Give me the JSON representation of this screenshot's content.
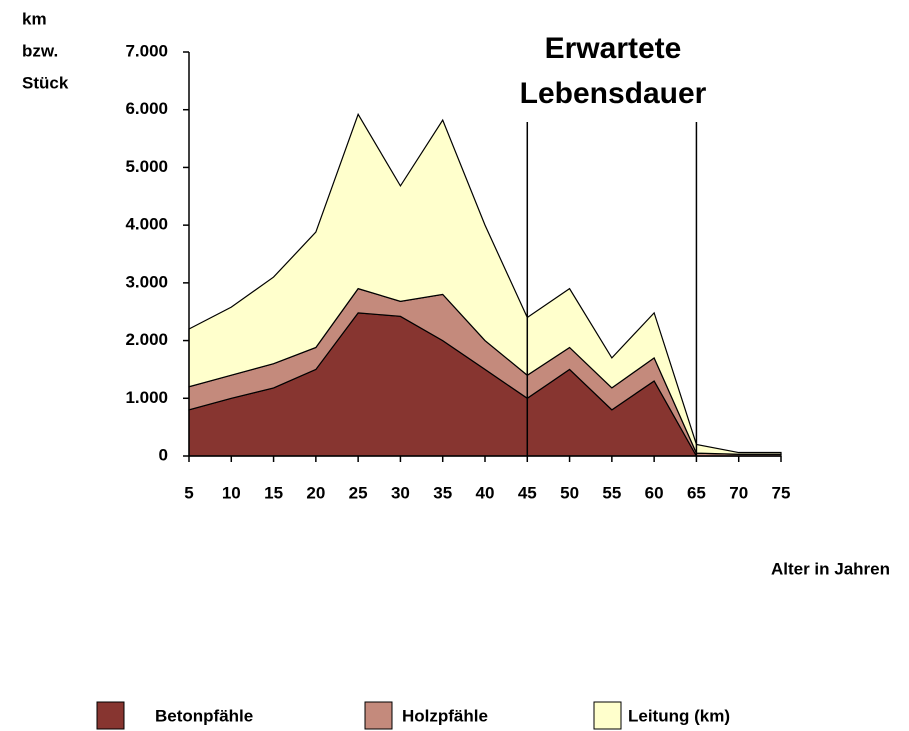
{
  "chart_data": {
    "type": "stacked_area",
    "y_label": [
      "km",
      "bzw.",
      "Stück"
    ],
    "x_label": "Alter in Jahren",
    "annotation": {
      "text": [
        "Erwartete",
        "Lebensdauer"
      ],
      "x": [
        45,
        65
      ]
    },
    "x": [
      5,
      10,
      15,
      20,
      25,
      30,
      35,
      40,
      45,
      50,
      55,
      60,
      65,
      70,
      75
    ],
    "series": [
      {
        "name": "Betonpfähle",
        "color": "#873530",
        "values": [
          800,
          1000,
          1180,
          1500,
          2480,
          2420,
          2000,
          1500,
          1000,
          1500,
          800,
          1300,
          0,
          0,
          0
        ]
      },
      {
        "name": "Holzpfähle",
        "color": "#c48a7c",
        "values": [
          400,
          400,
          420,
          380,
          420,
          260,
          800,
          500,
          400,
          380,
          380,
          400,
          50,
          30,
          30
        ]
      },
      {
        "name": "Leitung (km)",
        "color": "#ffffcc",
        "values": [
          1000,
          1180,
          1500,
          2000,
          3020,
          2000,
          3020,
          2000,
          1000,
          1020,
          520,
          780,
          150,
          30,
          30
        ]
      }
    ],
    "xlim": [
      5,
      75
    ],
    "xticks": [
      5,
      10,
      15,
      20,
      25,
      30,
      35,
      40,
      45,
      50,
      55,
      60,
      65,
      70,
      75
    ],
    "ylim": [
      0,
      7000
    ],
    "yticks": [
      0,
      {
        "value": 1000,
        "label": "1.000"
      },
      {
        "value": 2000,
        "label": "2.000"
      },
      {
        "value": 3000,
        "label": "3.000"
      },
      {
        "value": 4000,
        "label": "4.000"
      },
      {
        "value": 5000,
        "label": "5.000"
      },
      {
        "value": 6000,
        "label": "6.000"
      },
      {
        "value": 7000,
        "label": "7.000"
      }
    ],
    "legend": "bottom"
  }
}
